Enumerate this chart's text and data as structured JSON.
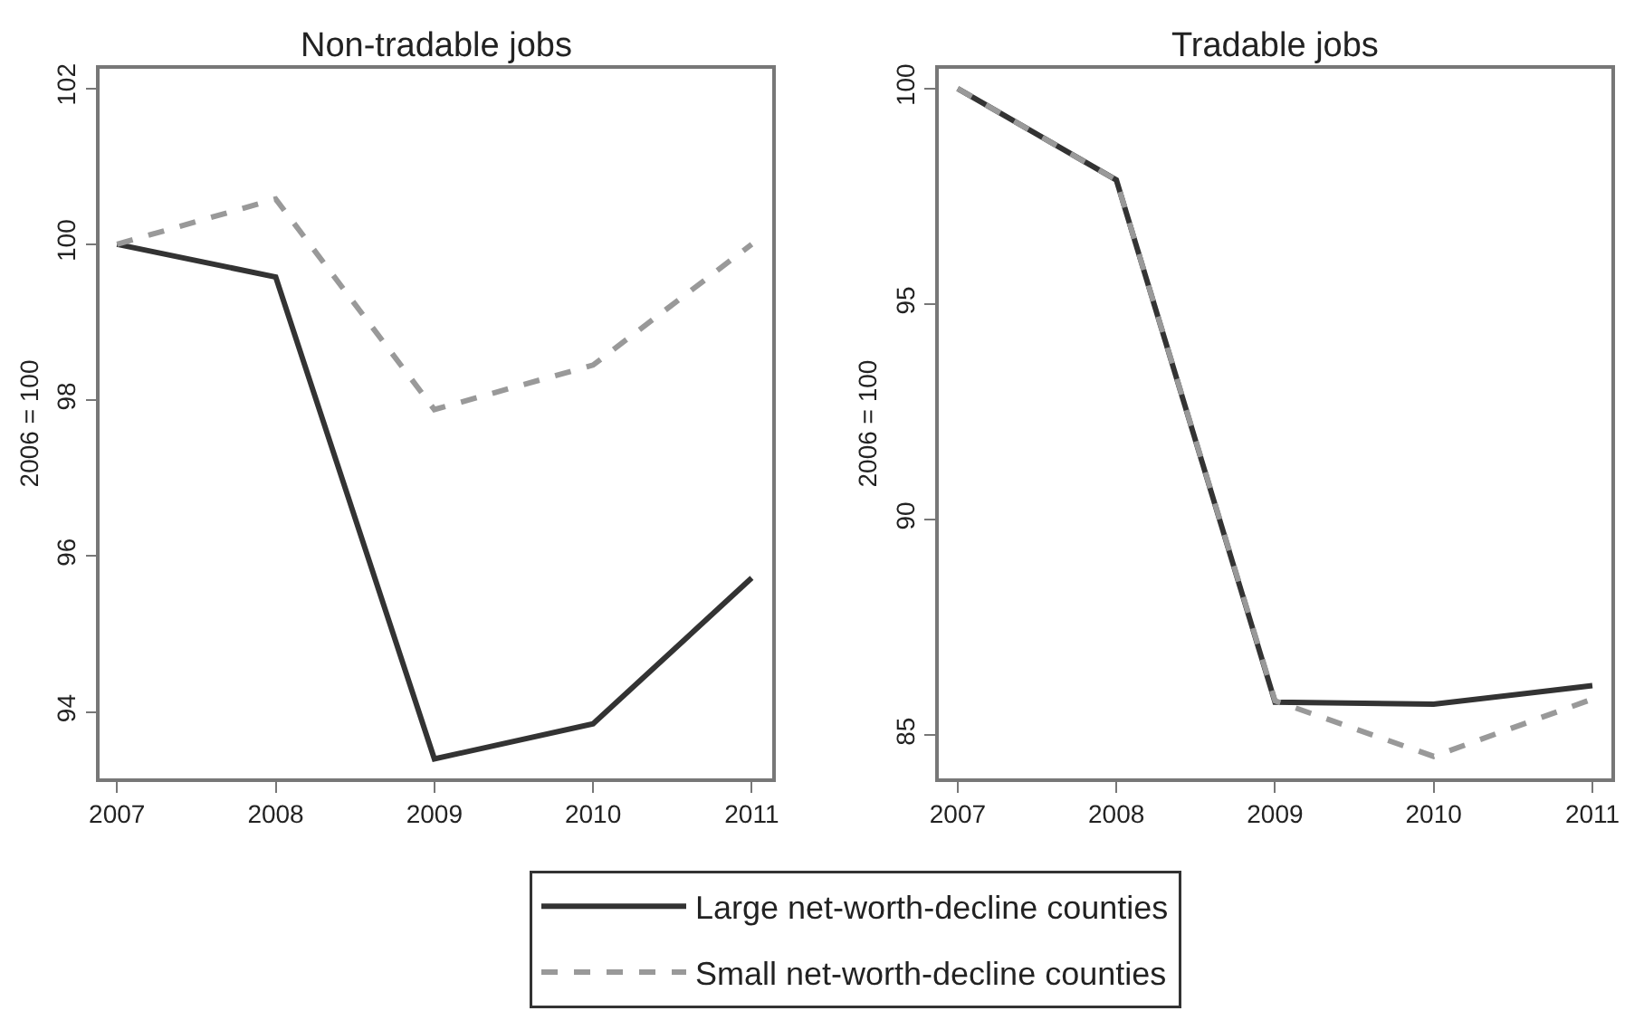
{
  "chart_data": [
    {
      "type": "line",
      "title": "Non-tradable jobs",
      "ylabel": "2006 = 100",
      "x": [
        2007,
        2008,
        2009,
        2010,
        2011
      ],
      "xlim": [
        2006.89,
        2011.13
      ],
      "xticks": [
        2007,
        2008,
        2009,
        2010,
        2011
      ],
      "ylim": [
        93.15,
        102.25
      ],
      "yticks": [
        94,
        96,
        98,
        100,
        102
      ],
      "legend": "bottom",
      "marker": "none",
      "series": [
        {
          "name": "Large net-worth-decline counties",
          "color": "#333333",
          "line_style": "solid",
          "values": [
            100,
            99.58,
            93.4,
            93.85,
            95.72
          ]
        },
        {
          "name": "Small net-worth-decline counties",
          "color": "#999999",
          "line_style": "dashed",
          "values": [
            100,
            100.58,
            97.88,
            98.45,
            100
          ]
        }
      ]
    },
    {
      "type": "line",
      "title": "Tradable jobs",
      "ylabel": "2006 = 100",
      "x": [
        2007,
        2008,
        2009,
        2010,
        2011
      ],
      "xlim": [
        2006.88,
        2011.12
      ],
      "xticks": [
        2007,
        2008,
        2009,
        2010,
        2011
      ],
      "ylim": [
        84.0,
        100.46
      ],
      "yticks": [
        85,
        90,
        95,
        100
      ],
      "marker": "none",
      "series": [
        {
          "color": "#333333",
          "line_style": "solid",
          "values": [
            100,
            97.88,
            85.77,
            85.72,
            86.15
          ]
        },
        {
          "color": "#999999",
          "line_style": "dashed",
          "values": [
            100,
            97.88,
            85.8,
            84.51,
            85.84
          ]
        }
      ]
    }
  ]
}
